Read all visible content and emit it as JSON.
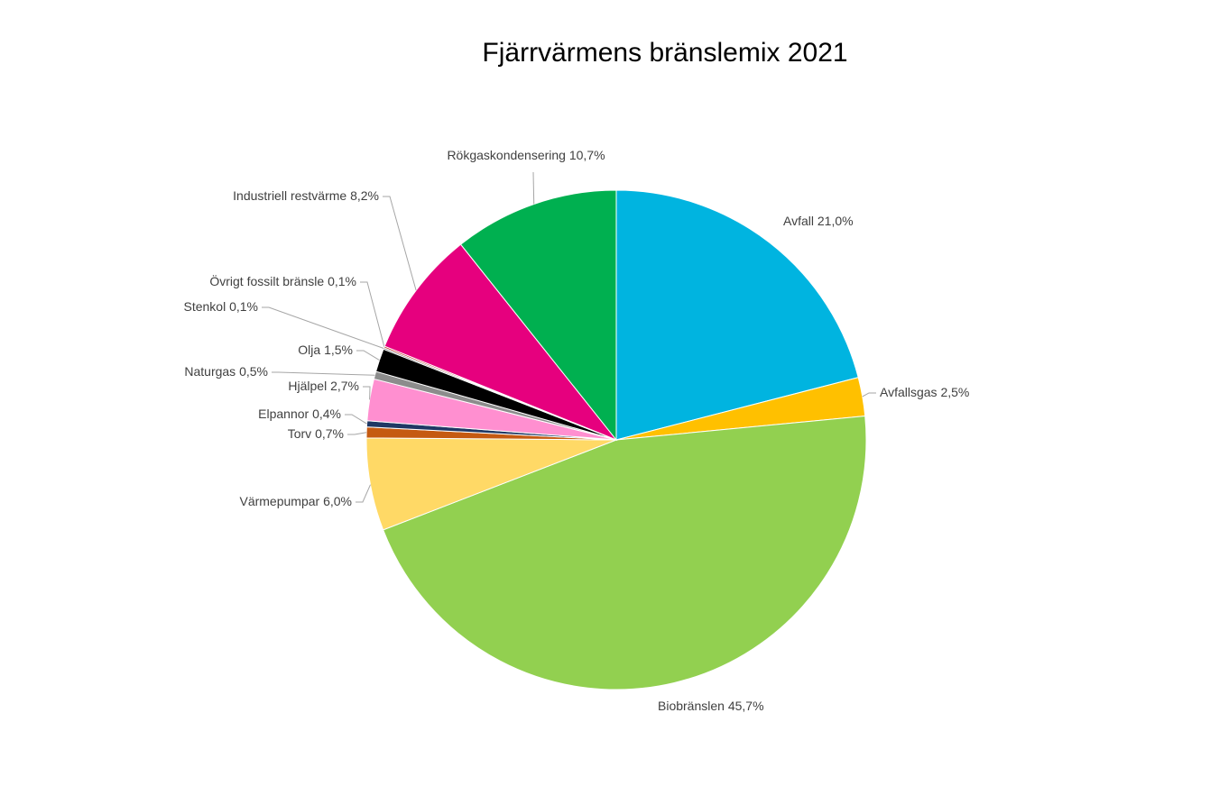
{
  "chart_data": {
    "type": "pie",
    "title": "Fjärrvärmens bränslemix 2021",
    "categories": [
      "Avfall",
      "Avfallsgas",
      "Biobränslen",
      "Värmepumpar",
      "Torv",
      "Elpannor",
      "Hjälpel",
      "Naturgas",
      "Olja",
      "Stenkol",
      "Övrigt fossilt bränsle",
      "Industriell restvärme",
      "Rökgaskondensering"
    ],
    "values": [
      21.0,
      2.5,
      45.7,
      6.0,
      0.7,
      0.4,
      2.7,
      0.5,
      1.5,
      0.1,
      0.1,
      8.2,
      10.7
    ],
    "value_labels": [
      "21,0%",
      "2,5%",
      "45,7%",
      "6,0%",
      "0,7%",
      "0,4%",
      "2,7%",
      "0,5%",
      "1,5%",
      "0,1%",
      "0,1%",
      "8,2%",
      "10,7%"
    ],
    "colors": [
      "#00b4e0",
      "#ffc000",
      "#92d050",
      "#ffd966",
      "#c55a11",
      "#1f3864",
      "#ff8fd0",
      "#8c8c8c",
      "#000000",
      "#7f7f7f",
      "#c00000",
      "#e6007e",
      "#00b050"
    ]
  }
}
